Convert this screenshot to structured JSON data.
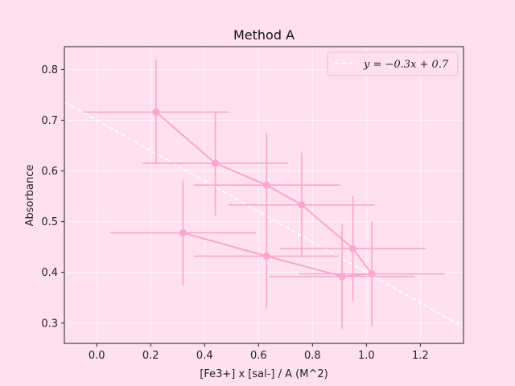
{
  "chart_data": {
    "type": "line",
    "title": "Method A",
    "xlabel": "[Fe3+] x [sal-] / A (M^2)",
    "ylabel": "Absorbance",
    "xlim": [
      -0.12,
      1.36
    ],
    "ylim": [
      0.26,
      0.845
    ],
    "xticks": [
      "0.0",
      "0.2",
      "0.4",
      "0.6",
      "0.8",
      "1.0",
      "1.2"
    ],
    "xtick_values": [
      0.0,
      0.2,
      0.4,
      0.6,
      0.8,
      1.0,
      1.2
    ],
    "yticks": [
      "0.3",
      "0.4",
      "0.5",
      "0.6",
      "0.7",
      "0.8"
    ],
    "ytick_values": [
      0.3,
      0.4,
      0.5,
      0.6,
      0.7,
      0.8
    ],
    "grid": true,
    "legend_position": "upper right",
    "colors": {
      "background": "#ffe0ee",
      "plot_bg": "#ffe0ee",
      "series": "#f7a8cc",
      "fit": "#ffffff",
      "grid": "#ffffff"
    },
    "series": [
      {
        "x": [
          0.32,
          0.63,
          0.91,
          1.02,
          0.95,
          0.76,
          0.63,
          0.44,
          0.22
        ],
        "y": [
          0.478,
          0.432,
          0.392,
          0.397,
          0.447,
          0.533,
          0.572,
          0.615,
          0.716
        ],
        "xerr": [
          0.27,
          0.27,
          0.27,
          0.27,
          0.27,
          0.27,
          0.27,
          0.27,
          0.27
        ],
        "yerr": [
          0.103,
          0.103,
          0.103,
          0.103,
          0.103,
          0.103,
          0.103,
          0.103,
          0.103
        ]
      }
    ],
    "fit_line": {
      "slope": -0.3,
      "intercept": 0.7,
      "label": "y = −0.3x + 0.7"
    }
  }
}
